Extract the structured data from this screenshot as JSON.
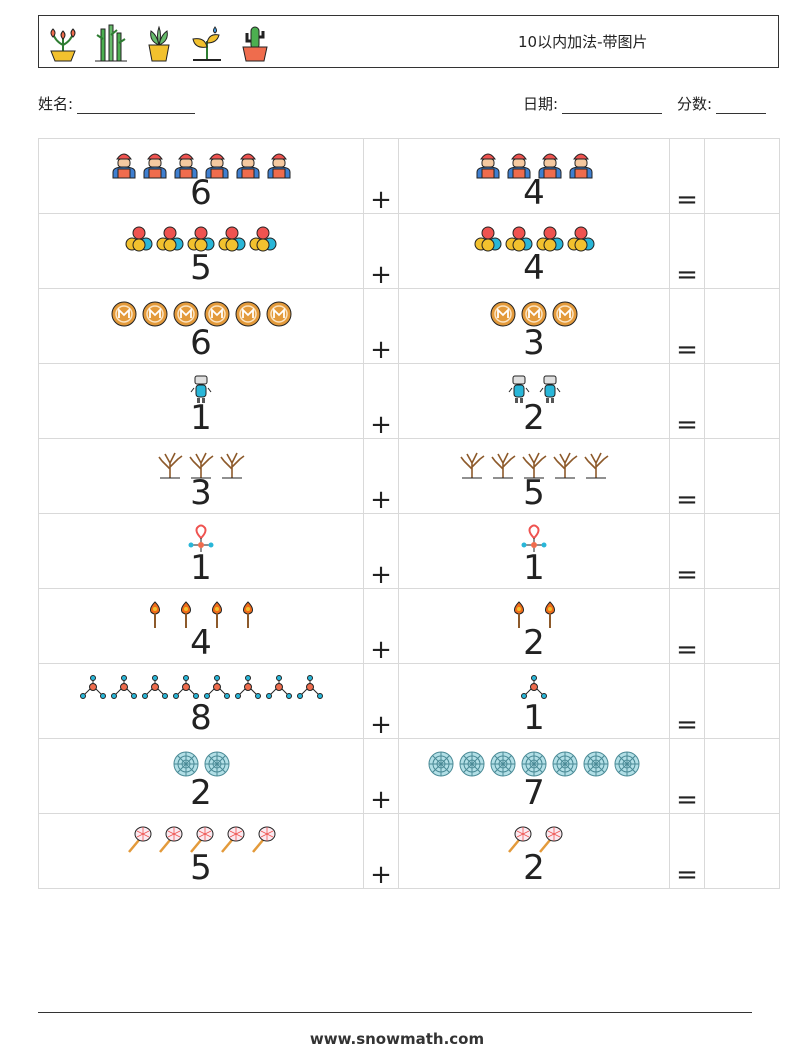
{
  "header": {
    "title": "10以内加法-带图片",
    "icons": [
      "flower-pot-icon",
      "bamboo-icon",
      "succulent-pot-icon",
      "sprout-icon",
      "cactus-pot-icon"
    ]
  },
  "info": {
    "name_label": "姓名:",
    "date_label": "日期:",
    "score_label": "分数:"
  },
  "problems": [
    {
      "a": "6",
      "a_icon": "worker-icon",
      "op": "+",
      "b": "4",
      "b_icon": "worker-icon",
      "eq": "="
    },
    {
      "a": "5",
      "a_icon": "coins-icon",
      "op": "+",
      "b": "4",
      "b_icon": "coins-icon",
      "eq": "="
    },
    {
      "a": "6",
      "a_icon": "monero-coin-icon",
      "op": "+",
      "b": "3",
      "b_icon": "monero-coin-icon",
      "eq": "="
    },
    {
      "a": "1",
      "a_icon": "robot-icon",
      "op": "+",
      "b": "2",
      "b_icon": "robot-icon",
      "eq": "="
    },
    {
      "a": "3",
      "a_icon": "bare-tree-icon",
      "op": "+",
      "b": "5",
      "b_icon": "bare-tree-icon",
      "eq": "="
    },
    {
      "a": "1",
      "a_icon": "location-pin-icon",
      "op": "+",
      "b": "1",
      "b_icon": "location-pin-icon",
      "eq": "="
    },
    {
      "a": "4",
      "a_icon": "torch-icon",
      "op": "+",
      "b": "2",
      "b_icon": "torch-icon",
      "eq": "="
    },
    {
      "a": "8",
      "a_icon": "molecule-icon",
      "op": "+",
      "b": "1",
      "b_icon": "molecule-icon",
      "eq": "="
    },
    {
      "a": "2",
      "a_icon": "spider-web-icon",
      "op": "+",
      "b": "7",
      "b_icon": "spider-web-icon",
      "eq": "="
    },
    {
      "a": "5",
      "a_icon": "net-icon",
      "op": "+",
      "b": "2",
      "b_icon": "net-icon",
      "eq": "="
    }
  ],
  "footer": {
    "url": "www.snowmath.com"
  }
}
